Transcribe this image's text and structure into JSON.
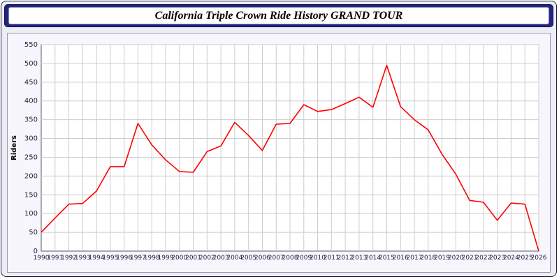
{
  "title": "California Triple Crown Ride History GRAND TOUR",
  "colors": {
    "titlebar": "#232388",
    "panel_bg": "#f6f6fc",
    "plot_bg": "#ffffff",
    "grid": "#cccccc",
    "line": "#ff0000",
    "axis_text": "#222244",
    "axis_line": "#555566"
  },
  "chart_data": {
    "type": "line",
    "title": "California Triple Crown Ride History GRAND TOUR",
    "xlabel": "",
    "ylabel": "Riders",
    "ylim": [
      0,
      550
    ],
    "ytick_step": 50,
    "grid": true,
    "legend": "none",
    "x": [
      1990,
      1991,
      1992,
      1993,
      1994,
      1995,
      1996,
      1997,
      1998,
      1999,
      2000,
      2001,
      2002,
      2003,
      2004,
      2005,
      2006,
      2007,
      2008,
      2009,
      2010,
      2011,
      2012,
      2013,
      2014,
      2015,
      2016,
      2017,
      2018,
      2019,
      2020,
      2021,
      2022,
      2023,
      2024,
      2025,
      2026
    ],
    "values": [
      50,
      88,
      125,
      127,
      160,
      225,
      225,
      340,
      283,
      243,
      212,
      210,
      265,
      280,
      343,
      308,
      268,
      338,
      340,
      390,
      372,
      377,
      393,
      410,
      383,
      495,
      385,
      350,
      323,
      258,
      205,
      135,
      130,
      82,
      128,
      125,
      0
    ]
  }
}
